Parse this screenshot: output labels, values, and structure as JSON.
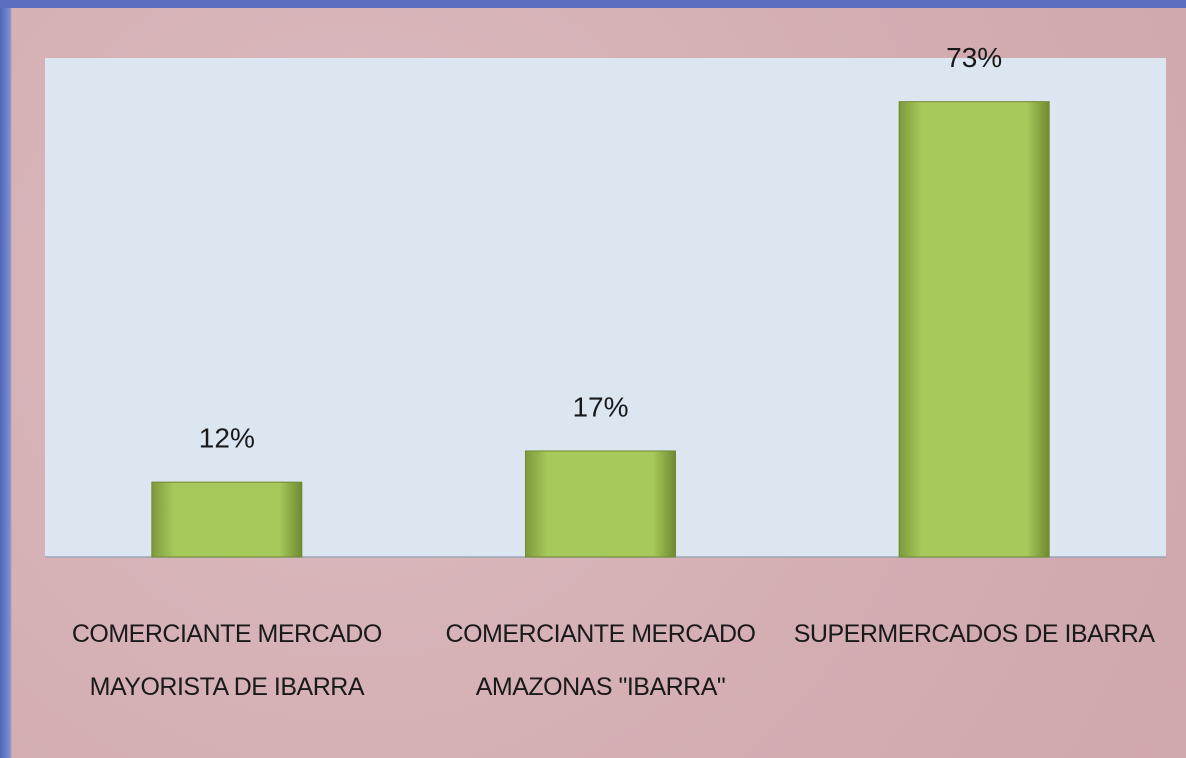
{
  "chart_data": {
    "type": "bar",
    "categories": [
      "COMERCIANTE MERCADO MAYORISTA DE IBARRA",
      "COMERCIANTE MERCADO AMAZONAS \"IBARRA\"",
      "SUPERMERCADOS DE IBARRA"
    ],
    "values": [
      12,
      17,
      73
    ],
    "value_labels": [
      "12%",
      "17%",
      "73%"
    ],
    "color": "#9bbb59",
    "ylim": [
      0,
      80
    ]
  }
}
